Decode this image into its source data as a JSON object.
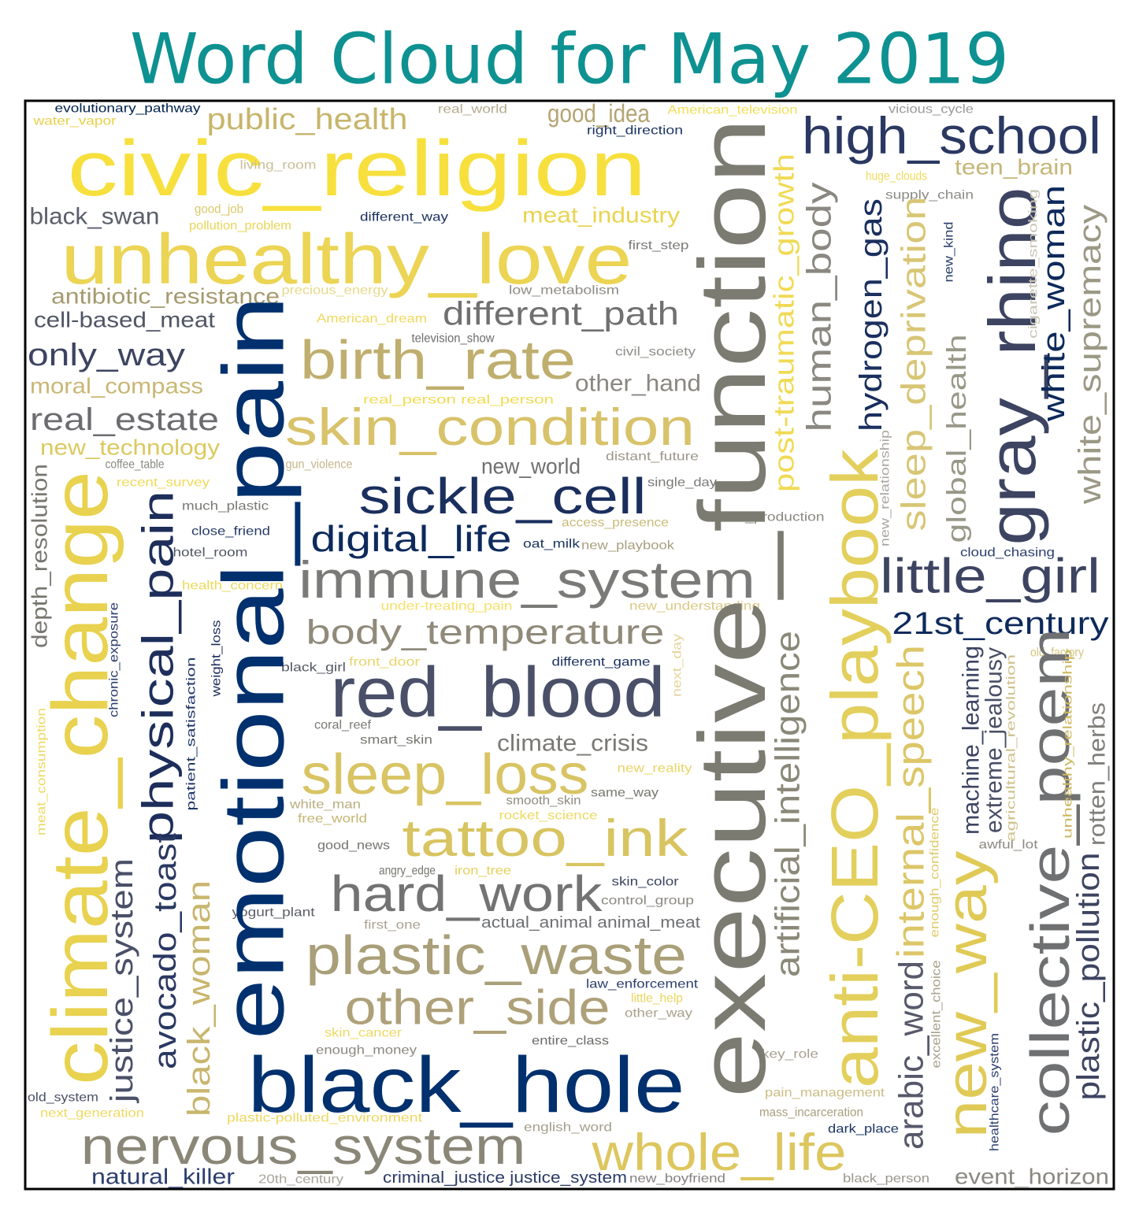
{
  "chart_data": {
    "type": "wordcloud",
    "title": "Word Cloud for May 2019",
    "title_color": "#0e9191",
    "words": [
      {
        "text": "evolutionary_pathway",
        "color": "#00224e"
      },
      {
        "text": "water_vapor",
        "color": "#e8d04a"
      },
      {
        "text": "public_health",
        "color": "#c7b56b"
      },
      {
        "text": "real_world",
        "color": "#b5ac8f"
      },
      {
        "text": "good_idea",
        "color": "#b4a572"
      },
      {
        "text": "American_television",
        "color": "#f2df58"
      },
      {
        "text": "vicious_cycle",
        "color": "#999999"
      },
      {
        "text": "right_direction",
        "color": "#1d3565"
      },
      {
        "text": "civic_religion",
        "color": "#f7e03e"
      },
      {
        "text": "high_school",
        "color": "#2a3862"
      },
      {
        "text": "living_room",
        "color": "#c9bf9a"
      },
      {
        "text": "teen_brain",
        "color": "#c5b677"
      },
      {
        "text": "huge_clouds",
        "color": "#f0da5c"
      },
      {
        "text": "supply_chain",
        "color": "#8a8a86"
      },
      {
        "text": "black_swan",
        "color": "#5a5e6a"
      },
      {
        "text": "good_job",
        "color": "#d9c86a"
      },
      {
        "text": "different_way",
        "color": "#1a2f5e"
      },
      {
        "text": "meat_industry",
        "color": "#e8d450"
      },
      {
        "text": "pollution_problem",
        "color": "#e9d559"
      },
      {
        "text": "first_step",
        "color": "#7a7a78"
      },
      {
        "text": "unhealthy_love",
        "color": "#ecd454"
      },
      {
        "text": "antibiotic_resistance",
        "color": "#a59a6e"
      },
      {
        "text": "precious_energy",
        "color": "#e6d98a"
      },
      {
        "text": "low_metabolism",
        "color": "#8e8c85"
      },
      {
        "text": "cell-based_meat",
        "color": "#4f5565"
      },
      {
        "text": "American_dream",
        "color": "#f0d85c"
      },
      {
        "text": "different_path",
        "color": "#707070"
      },
      {
        "text": "television_show",
        "color": "#6d6d6d"
      },
      {
        "text": "only_way",
        "color": "#3d4461"
      },
      {
        "text": "birth_rate",
        "color": "#bfae6e"
      },
      {
        "text": "civil_society",
        "color": "#8d8d89"
      },
      {
        "text": "moral_compass",
        "color": "#c9b775"
      },
      {
        "text": "other_hand",
        "color": "#8a8780"
      },
      {
        "text": "real_person real_person",
        "color": "#f2db52"
      },
      {
        "text": "real_estate",
        "color": "#6c6c70"
      },
      {
        "text": "skin_condition",
        "color": "#d8c26a"
      },
      {
        "text": "new_technology",
        "color": "#dbc95e"
      },
      {
        "text": "coffee_table",
        "color": "#8a8880"
      },
      {
        "text": "gun_violence",
        "color": "#c5b68a"
      },
      {
        "text": "new_world",
        "color": "#6f6f6f"
      },
      {
        "text": "distant_future",
        "color": "#9c9789"
      },
      {
        "text": "recent_survey",
        "color": "#f0da5a"
      },
      {
        "text": "sickle_cell",
        "color": "#1a2f5e"
      },
      {
        "text": "single_day",
        "color": "#7a7a78"
      },
      {
        "text": "much_plastic",
        "color": "#7a7975"
      },
      {
        "text": "meat_production",
        "color": "#8a8880"
      },
      {
        "text": "access_presence",
        "color": "#c9bb7c"
      },
      {
        "text": "close_friend",
        "color": "#263a68"
      },
      {
        "text": "digital_life",
        "color": "#0e2a5c"
      },
      {
        "text": "oat_milk",
        "color": "#1a3565"
      },
      {
        "text": "new_playbook",
        "color": "#a79f7f"
      },
      {
        "text": "hotel_room",
        "color": "#525664"
      },
      {
        "text": "cloud_chasing",
        "color": "#2c3e6e"
      },
      {
        "text": "little_girl",
        "color": "#3d4461"
      },
      {
        "text": "immune_system",
        "color": "#7a7a78"
      },
      {
        "text": "health_concern",
        "color": "#eed95a"
      },
      {
        "text": "under-treating_pain",
        "color": "#f5e06a"
      },
      {
        "text": "new_understanding",
        "color": "#dcc885"
      },
      {
        "text": "21st_century",
        "color": "#0e2a5c"
      },
      {
        "text": "body_temperature",
        "color": "#908a7a"
      },
      {
        "text": "old_factory",
        "color": "#d4c67e"
      },
      {
        "text": "front_door",
        "color": "#e8d56d"
      },
      {
        "text": "different_game",
        "color": "#1a2f5e"
      },
      {
        "text": "black_girl",
        "color": "#555862"
      },
      {
        "text": "red_blood",
        "color": "#4a5068"
      },
      {
        "text": "coral_reef",
        "color": "#7a7975"
      },
      {
        "text": "smart_skin",
        "color": "#76756f"
      },
      {
        "text": "climate_crisis",
        "color": "#7a7976"
      },
      {
        "text": "new_reality",
        "color": "#e9d565"
      },
      {
        "text": "sleep_loss",
        "color": "#d8c464"
      },
      {
        "text": "same_way",
        "color": "#77766f"
      },
      {
        "text": "smooth_skin",
        "color": "#8e8b80"
      },
      {
        "text": "white_man",
        "color": "#b9ae80"
      },
      {
        "text": "rocket_science",
        "color": "#eed962"
      },
      {
        "text": "free_world",
        "color": "#c5b674"
      },
      {
        "text": "tattoo_ink",
        "color": "#d8c460"
      },
      {
        "text": "good_news",
        "color": "#74746f"
      },
      {
        "text": "awful_lot",
        "color": "#8a8880"
      },
      {
        "text": "angry_edge",
        "color": "#76756f"
      },
      {
        "text": "iron_tree",
        "color": "#e5d15c"
      },
      {
        "text": "skin_color",
        "color": "#3c4460"
      },
      {
        "text": "hard_work",
        "color": "#737373"
      },
      {
        "text": "control_group",
        "color": "#8a8880"
      },
      {
        "text": "yogurt_plant",
        "color": "#5a5d66"
      },
      {
        "text": "first_one",
        "color": "#a8a290"
      },
      {
        "text": "actual_animal animal_meat",
        "color": "#6e6f73"
      },
      {
        "text": "plastic_waste",
        "color": "#a99f78"
      },
      {
        "text": "law_enforcement",
        "color": "#2c3e6e"
      },
      {
        "text": "little_help",
        "color": "#e8d45c"
      },
      {
        "text": "other_side",
        "color": "#aea078"
      },
      {
        "text": "other_way",
        "color": "#a8a28c"
      },
      {
        "text": "skin_cancer",
        "color": "#eed962"
      },
      {
        "text": "entire_class",
        "color": "#6a6a68"
      },
      {
        "text": "enough_money",
        "color": "#8a8880"
      },
      {
        "text": "key_role",
        "color": "#a7a090"
      },
      {
        "text": "black_hole",
        "color": "#00306e"
      },
      {
        "text": "old_system",
        "color": "#4a4f66"
      },
      {
        "text": "pain_management",
        "color": "#cbbd84"
      },
      {
        "text": "next_generation",
        "color": "#eed962"
      },
      {
        "text": "plastic-polluted_environment",
        "color": "#efd860"
      },
      {
        "text": "mass_incarceration",
        "color": "#a8a07c"
      },
      {
        "text": "english_word",
        "color": "#a49f8c"
      },
      {
        "text": "dark_place",
        "color": "#1a3565"
      },
      {
        "text": "nervous_system",
        "color": "#8a8778"
      },
      {
        "text": "whole_life",
        "color": "#ddc65e"
      },
      {
        "text": "natural_killer",
        "color": "#2c3e6e"
      },
      {
        "text": "20th_century",
        "color": "#a8a49a"
      },
      {
        "text": "criminal_justice justice_system",
        "color": "#2a3a66"
      },
      {
        "text": "new_boyfriend",
        "color": "#848280"
      },
      {
        "text": "black_person",
        "color": "#9a968c"
      },
      {
        "text": "event_horizon",
        "color": "#8a8880"
      },
      {
        "text": "emotional_pain",
        "color": "#00306e"
      },
      {
        "text": "executive_function",
        "color": "#7c7b72"
      },
      {
        "text": "climate_change",
        "color": "#e8d24f"
      },
      {
        "text": "physical_pain",
        "color": "#1d2e5b"
      },
      {
        "text": "anti-CEO_playbook",
        "color": "#e3cf5c"
      },
      {
        "text": "artificial_intelligence",
        "color": "#8a8878"
      },
      {
        "text": "post-traumatic_growth",
        "color": "#f0da55"
      },
      {
        "text": "human_body",
        "color": "#8a8880"
      },
      {
        "text": "hydrogen_gas",
        "color": "#1a2f5e"
      },
      {
        "text": "sleep_deprivation",
        "color": "#d8c676"
      },
      {
        "text": "global_health",
        "color": "#999888"
      },
      {
        "text": "gray_rhino",
        "color": "#3d4461"
      },
      {
        "text": "white_woman",
        "color": "#0e2a5c"
      },
      {
        "text": "white_supremacy",
        "color": "#9b9884"
      },
      {
        "text": "cigarette_smoking",
        "color": "#c8c4b4"
      },
      {
        "text": "new_kind",
        "color": "#2c3e6e"
      },
      {
        "text": "new_relationship",
        "color": "#aaa6a0"
      },
      {
        "text": "depth_resolution",
        "color": "#77766f"
      },
      {
        "text": "chronic_exposure",
        "color": "#2c3e6e"
      },
      {
        "text": "weight_loss",
        "color": "#1d2e5b"
      },
      {
        "text": "patient_satisfaction",
        "color": "#1d3565"
      },
      {
        "text": "meat_consumption",
        "color": "#eed962"
      },
      {
        "text": "next_day",
        "color": "#e6d49a"
      },
      {
        "text": "justice_system",
        "color": "#4a5068"
      },
      {
        "text": "avocado_toast",
        "color": "#2a3862"
      },
      {
        "text": "black_woman",
        "color": "#c8b66d"
      },
      {
        "text": "internal_speech",
        "color": "#dcc668"
      },
      {
        "text": "arabic_word",
        "color": "#57596b"
      },
      {
        "text": "new_way",
        "color": "#e0ca56"
      },
      {
        "text": "machine_learning",
        "color": "#3d4461"
      },
      {
        "text": "extreme_jealousy",
        "color": "#4a4f66"
      },
      {
        "text": "collective_poem",
        "color": "#6f7072"
      },
      {
        "text": "agricultural_revolution",
        "color": "#cfc28c"
      },
      {
        "text": "unhealthy_relationship",
        "color": "#cdb860"
      },
      {
        "text": "rotten_herbs",
        "color": "#807f7c"
      },
      {
        "text": "plastic_pollution",
        "color": "#3d4461"
      },
      {
        "text": "enough_confidence",
        "color": "#e0cc6c"
      },
      {
        "text": "excellent_choice",
        "color": "#a8a28c"
      },
      {
        "text": "healthcare_system",
        "color": "#2c3e6e"
      }
    ]
  }
}
